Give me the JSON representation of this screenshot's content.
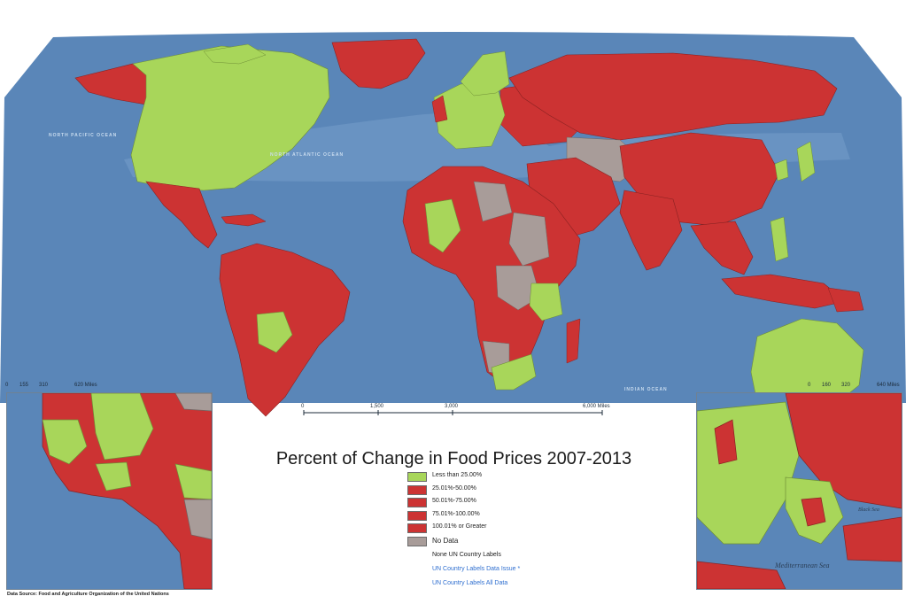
{
  "title": "Percent of Change in Food Prices 2007-2013",
  "colors": {
    "ocean": "#5a86b8",
    "ocean_shallow": "#9cc0e0",
    "less_than_25": "#a8d65a",
    "over_25": "#cc3333",
    "no_data": "#a89c99",
    "link": "#2f6fd0"
  },
  "legend": [
    {
      "label": "Less than 25.00%",
      "color": "#a8d65a"
    },
    {
      "label": "25.01%-50.00%",
      "color": "#cc3333"
    },
    {
      "label": "50.01%-75.00%",
      "color": "#cc3333"
    },
    {
      "label": "75.01%-100.00%",
      "color": "#cc3333"
    },
    {
      "label": "100.01% or Greater",
      "color": "#cc3333"
    },
    {
      "label": "No Data",
      "color": "#a89c99"
    }
  ],
  "label_options": {
    "none": "None UN Country Labels",
    "issue": "UN Country Labels Data Issue *",
    "all": "UN Country Labels All Data"
  },
  "ocean_labels": {
    "north_pacific": "NORTH PACIFIC OCEAN",
    "north_atlantic": "NORTH ATLANTIC OCEAN",
    "indian": "INDIAN OCEAN"
  },
  "main_scale": {
    "ticks": [
      "0",
      "1,500",
      "3,000",
      "6,000 Miles"
    ]
  },
  "left_inset_scale": {
    "ticks": [
      "0",
      "155",
      "310",
      "620 Miles"
    ]
  },
  "right_inset_scale": {
    "ticks": [
      "0",
      "160",
      "320",
      "640 Miles"
    ]
  },
  "inset_labels": {
    "mediterranean": "Mediterranean Sea",
    "black_sea": "Black Sea"
  },
  "data_source": "Data Source: Food and Agriculture Organization of the United Nations"
}
